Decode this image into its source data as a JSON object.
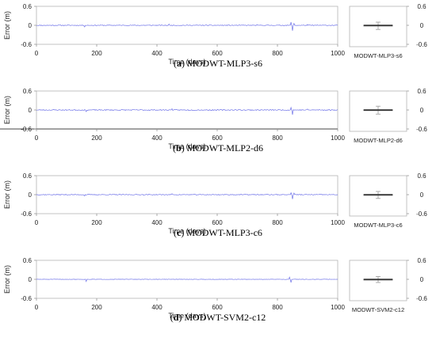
{
  "chart_data": [
    {
      "type": "line",
      "panel": "(a)",
      "caption_letter": "a",
      "caption_text": "MODWT-MLP3-s6",
      "xlabel": "Time (days)",
      "ylabel": "Error (m)",
      "xlim": [
        0,
        1000
      ],
      "ylim": [
        -0.6,
        0.6
      ],
      "xticks": [
        0,
        200,
        400,
        600,
        800,
        1000
      ],
      "yticks": [
        0.6,
        0,
        -0.6
      ],
      "ytick_labels": [
        "0.6",
        "0",
        "-0.6"
      ],
      "series": [
        {
          "color": "#6f73e8",
          "noise": 0.012,
          "seed": 11,
          "spikes": [
            {
              "x": 160,
              "y": -0.05
            },
            {
              "x": 440,
              "y": 0.04
            },
            {
              "x": 845,
              "y": 0.1
            },
            {
              "x": 850,
              "y": -0.17
            },
            {
              "x": 855,
              "y": 0.06
            },
            {
              "x": 900,
              "y": 0.03
            }
          ]
        }
      ],
      "boxplot": {
        "label": "MODWT-MLP3-s6",
        "median": 0.0,
        "q1": -0.005,
        "q3": 0.005,
        "whisker_low": -0.13,
        "whisker_high": 0.1,
        "yticks": [
          0.6,
          0,
          -0.6
        ],
        "ytick_labels": [
          "0.6",
          "0",
          "-0.6"
        ]
      }
    },
    {
      "type": "line",
      "panel": "(b)",
      "caption_letter": "b",
      "caption_text": "MODWT-MLP2-d6",
      "xlabel": "Time (days)",
      "ylabel": "Error (m)",
      "xlim": [
        0,
        1000
      ],
      "ylim": [
        -0.6,
        0.6
      ],
      "xticks": [
        0,
        200,
        400,
        600,
        800,
        1000
      ],
      "yticks": [
        0.6,
        0,
        -0.6
      ],
      "ytick_labels": [
        "0.6",
        "0",
        "-0.6"
      ],
      "series": [
        {
          "color": "#6f73e8",
          "noise": 0.015,
          "seed": 23,
          "spikes": [
            {
              "x": 165,
              "y": -0.05
            },
            {
              "x": 450,
              "y": 0.04
            },
            {
              "x": 845,
              "y": 0.08
            },
            {
              "x": 850,
              "y": -0.15
            },
            {
              "x": 900,
              "y": 0.03
            }
          ]
        }
      ],
      "boxplot": {
        "label": "MODWT-MLP2-d6",
        "median": 0.0,
        "q1": -0.008,
        "q3": 0.008,
        "whisker_low": -0.13,
        "whisker_high": 0.12,
        "yticks": [
          0.6,
          0,
          -0.6
        ],
        "ytick_labels": [
          "0.6",
          "0",
          "-0.6"
        ]
      }
    },
    {
      "type": "line",
      "panel": "(c)",
      "caption_letter": "c",
      "caption_text": "MODWT-MLP3-c6",
      "xlabel": "Time (days)",
      "ylabel": "Error (m)",
      "xlim": [
        0,
        1000
      ],
      "ylim": [
        -0.6,
        0.6
      ],
      "xticks": [
        0,
        200,
        400,
        600,
        800,
        1000
      ],
      "yticks": [
        0.6,
        0,
        -0.6
      ],
      "ytick_labels": [
        "0.6",
        "0",
        "-0.6"
      ],
      "series": [
        {
          "color": "#6f73e8",
          "noise": 0.013,
          "seed": 37,
          "spikes": [
            {
              "x": 160,
              "y": -0.04
            },
            {
              "x": 450,
              "y": 0.03
            },
            {
              "x": 845,
              "y": 0.06
            },
            {
              "x": 850,
              "y": -0.14
            },
            {
              "x": 855,
              "y": 0.05
            }
          ]
        }
      ],
      "boxplot": {
        "label": "MODWT-MLP3-c6",
        "median": 0.0,
        "q1": -0.006,
        "q3": 0.006,
        "whisker_low": -0.12,
        "whisker_high": 0.1,
        "yticks": [
          0.6,
          0,
          -0.6
        ],
        "ytick_labels": [
          "0.6",
          "0",
          "-0.6"
        ]
      }
    },
    {
      "type": "line",
      "panel": "(d)",
      "caption_letter": "d",
      "caption_text": "MODWT-SVM2-c12",
      "xlabel": "Time (days)",
      "ylabel": "Error (m)",
      "xlim": [
        0,
        1000
      ],
      "ylim": [
        -0.6,
        0.6
      ],
      "xticks": [
        0,
        200,
        400,
        600,
        800,
        1000
      ],
      "yticks": [
        0.6,
        0,
        -0.6
      ],
      "ytick_labels": [
        "0.6",
        "0",
        "-0.6"
      ],
      "series": [
        {
          "color": "#6f73e8",
          "noise": 0.006,
          "seed": 51,
          "spikes": [
            {
              "x": 165,
              "y": -0.07
            },
            {
              "x": 840,
              "y": 0.07
            },
            {
              "x": 845,
              "y": -0.1
            }
          ]
        }
      ],
      "boxplot": {
        "label": "MODWT-SVM2-c12",
        "median": 0.0,
        "q1": -0.004,
        "q3": 0.004,
        "whisker_low": -0.1,
        "whisker_high": 0.09,
        "yticks": [
          0.6,
          0,
          -0.6
        ],
        "ytick_labels": [
          "0.6",
          "0",
          "-0.6"
        ]
      }
    }
  ]
}
